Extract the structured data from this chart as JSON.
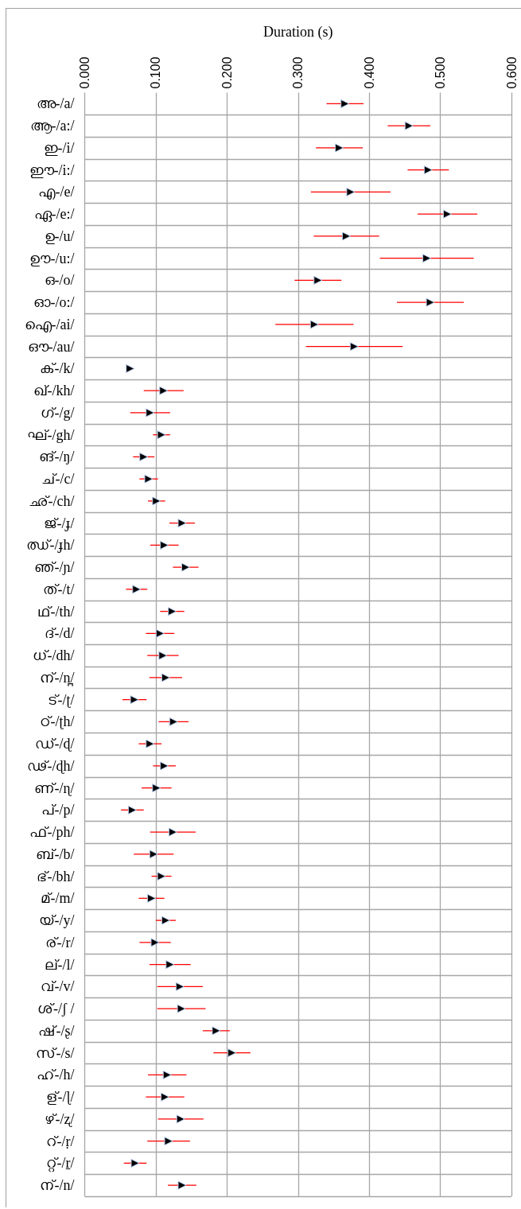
{
  "chart_data": {
    "type": "scatter",
    "orientation": "horizontal",
    "xlabel": "Duration (s)",
    "categories": [
      "അ-/a/",
      "ആ-/a:/",
      "ഇ-/i/",
      "ഈ-/i:/",
      "എ-/e/",
      "ഏ-/e:/",
      "ഉ-/u/",
      "ഊ-/u:/",
      "ഒ-/o/",
      "ഓ-/o:/",
      "ഐ-/ai/",
      "ഔ-/au/",
      "ക്-/k/",
      "ഖ്-/kh/",
      "ഗ്-/g/",
      "ഘ്-/gh/",
      "ങ്-/ŋ/",
      "ച്-/c/",
      "ഛ്-/ch/",
      "ജ്-/ɟ/",
      "ഝ്-/ɟh/",
      "ഞ്-/ɲ/",
      "ത്-/t/",
      "ഥ്-/th/",
      "ദ്-/d/",
      "ധ്-/dh/",
      "ന്-/n̪/",
      "ട്-/ʈ/",
      "ഠ്-/ʈh/",
      "ഡ്-/ɖ/",
      "ഢ്-/ɖh/",
      "ണ്-/ɳ/",
      "പ്-/p/",
      "ഫ്-/ph/",
      "ബ്-/b/",
      "ഭ്-/bh/",
      "മ്-/m/",
      "യ്-/y/",
      "ര്-/r/",
      "ല്-/l/",
      "വ്-/v/",
      "ശ്-/ʃ /",
      "ഷ്-/ʂ/",
      "സ്-/s/",
      "ഹ്-/h/",
      "ള്-/ɭ/",
      "ഴ്-/ʐ/",
      "റ്-/ṛ/",
      "റ്റ്-/ṟ/",
      "ന്-/n/"
    ],
    "series": [
      {
        "color": "#000000",
        "values": [
          0.366,
          0.456,
          0.358,
          0.483,
          0.374,
          0.51,
          0.368,
          0.481,
          0.328,
          0.486,
          0.323,
          0.379,
          0.064,
          0.111,
          0.092,
          0.108,
          0.083,
          0.09,
          0.101,
          0.137,
          0.112,
          0.142,
          0.073,
          0.123,
          0.106,
          0.11,
          0.114,
          0.07,
          0.125,
          0.092,
          0.112,
          0.101,
          0.067,
          0.124,
          0.097,
          0.108,
          0.094,
          0.114,
          0.099,
          0.12,
          0.134,
          0.136,
          0.185,
          0.207,
          0.116,
          0.113,
          0.135,
          0.118,
          0.071,
          0.137
        ],
        "errors": [
          0.026,
          0.03,
          0.033,
          0.029,
          0.056,
          0.042,
          0.046,
          0.066,
          0.033,
          0.047,
          0.055,
          0.068,
          null,
          0.028,
          0.028,
          0.012,
          0.015,
          0.013,
          0.012,
          0.018,
          0.02,
          0.018,
          0.015,
          0.017,
          0.02,
          0.022,
          0.023,
          0.017,
          0.021,
          0.016,
          0.016,
          0.021,
          0.016,
          0.032,
          0.028,
          0.014,
          0.018,
          0.014,
          0.022,
          0.029,
          0.032,
          0.034,
          0.019,
          0.026,
          0.027,
          0.027,
          0.032,
          0.03,
          0.016,
          0.02
        ]
      }
    ],
    "marker": "triangle",
    "grid": true,
    "xlim": [
      0,
      0.6
    ],
    "xticks": [
      {
        "value": 0,
        "label": "0.000"
      },
      {
        "value": 0.1,
        "label": "0.100"
      },
      {
        "value": 0.2,
        "label": "0.200"
      },
      {
        "value": 0.3,
        "label": "0.300"
      },
      {
        "value": 0.4,
        "label": "0.400"
      },
      {
        "value": 0.5,
        "label": "0.500"
      },
      {
        "value": 0.6,
        "label": "0.600"
      }
    ]
  }
}
